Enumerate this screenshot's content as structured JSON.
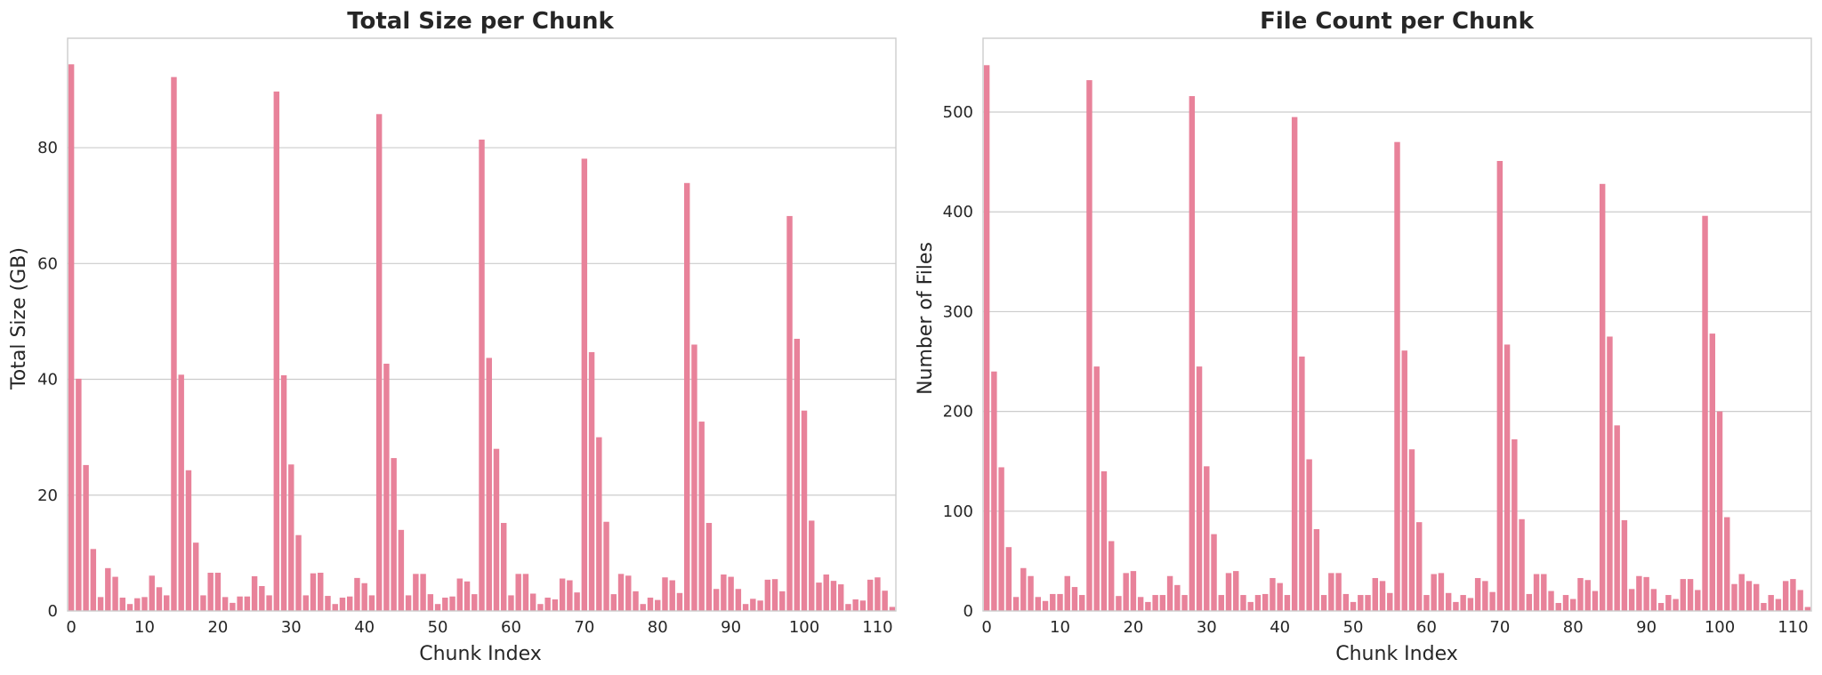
{
  "chart_data": [
    {
      "type": "bar",
      "title": "Total Size per Chunk",
      "xlabel": "Chunk Index",
      "ylabel": "Total Size (GB)",
      "xlim": [
        0,
        112
      ],
      "ylim": [
        0,
        98.9
      ],
      "xticks": [
        0,
        10,
        20,
        30,
        40,
        50,
        60,
        70,
        80,
        90,
        100,
        110
      ],
      "yticks": [
        0,
        20,
        40,
        60,
        80
      ],
      "grid": "y",
      "bar_color": "#e8829a",
      "values": [
        94.4,
        40.1,
        25.2,
        10.7,
        2.4,
        7.4,
        5.9,
        2.3,
        1.2,
        2.2,
        2.4,
        6.1,
        4.1,
        2.7,
        92.2,
        40.8,
        24.3,
        11.8,
        2.7,
        6.6,
        6.6,
        2.4,
        1.4,
        2.5,
        2.5,
        6.0,
        4.3,
        2.7,
        89.7,
        40.7,
        25.3,
        13.1,
        2.7,
        6.5,
        6.6,
        2.6,
        1.2,
        2.3,
        2.5,
        5.7,
        4.8,
        2.7,
        85.8,
        42.7,
        26.4,
        14.0,
        2.7,
        6.4,
        6.4,
        2.9,
        1.2,
        2.3,
        2.5,
        5.6,
        5.1,
        2.9,
        81.4,
        43.7,
        28.0,
        15.2,
        2.7,
        6.4,
        6.4,
        3.0,
        1.2,
        2.3,
        2.0,
        5.6,
        5.3,
        3.2,
        78.1,
        44.7,
        30.0,
        15.4,
        2.9,
        6.4,
        6.1,
        3.4,
        1.2,
        2.3,
        1.9,
        5.8,
        5.3,
        3.1,
        73.9,
        46.0,
        32.7,
        15.2,
        3.8,
        6.3,
        5.9,
        3.8,
        1.2,
        2.1,
        1.8,
        5.4,
        5.5,
        3.4,
        68.2,
        47.0,
        34.6,
        15.6,
        4.9,
        6.3,
        5.2,
        4.6,
        1.2,
        2.0,
        1.8,
        5.4,
        5.8,
        3.5,
        0.7
      ]
    },
    {
      "type": "bar",
      "title": "File Count per Chunk",
      "xlabel": "Chunk Index",
      "ylabel": "Number of Files",
      "xlim": [
        0,
        112
      ],
      "ylim": [
        0,
        574
      ],
      "xticks": [
        0,
        10,
        20,
        30,
        40,
        50,
        60,
        70,
        80,
        90,
        100,
        110
      ],
      "yticks": [
        0,
        100,
        200,
        300,
        400,
        500
      ],
      "grid": "y",
      "bar_color": "#e8829a",
      "values": [
        547,
        240,
        144,
        64,
        14,
        43,
        35,
        14,
        10,
        17,
        17,
        35,
        24,
        16,
        532,
        245,
        140,
        70,
        15,
        38,
        40,
        14,
        9,
        16,
        16,
        35,
        26,
        16,
        516,
        245,
        145,
        77,
        16,
        38,
        40,
        16,
        9,
        16,
        17,
        33,
        28,
        16,
        495,
        255,
        152,
        82,
        16,
        38,
        38,
        17,
        9,
        16,
        16,
        33,
        30,
        18,
        470,
        261,
        162,
        89,
        16,
        37,
        38,
        18,
        9,
        16,
        13,
        33,
        30,
        19,
        451,
        267,
        172,
        92,
        17,
        37,
        37,
        20,
        8,
        16,
        12,
        33,
        31,
        20,
        428,
        275,
        186,
        91,
        22,
        35,
        34,
        22,
        8,
        16,
        12,
        32,
        32,
        21,
        396,
        278,
        200,
        94,
        27,
        37,
        30,
        27,
        8,
        16,
        12,
        30,
        32,
        21,
        4
      ]
    }
  ]
}
